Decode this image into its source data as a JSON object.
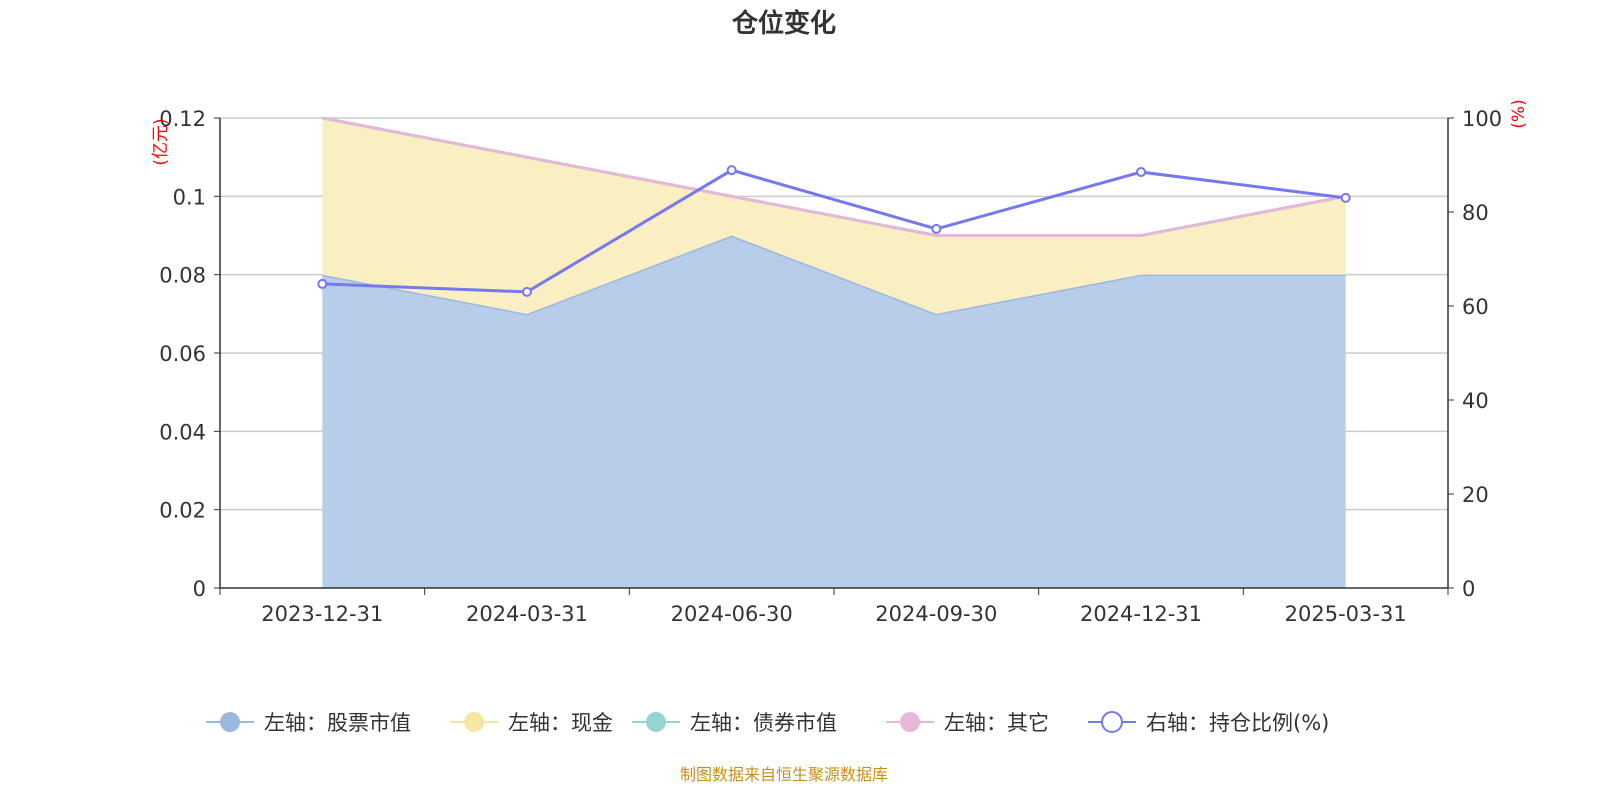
{
  "chart_data": {
    "type": "area",
    "stacked": true,
    "title": "仓位变化",
    "y_left_unit": "(亿元)",
    "y_right_unit": "(%)",
    "categories": [
      "2023-12-31",
      "2024-03-31",
      "2024-06-30",
      "2024-09-30",
      "2024-12-31",
      "2025-03-31"
    ],
    "y_left": {
      "range": [
        0,
        0.12
      ],
      "ticks": [
        "0",
        "0.02",
        "0.04",
        "0.06",
        "0.08",
        "0.1",
        "0.12"
      ],
      "tick_values": [
        0,
        0.02,
        0.04,
        0.06,
        0.08,
        0.1,
        0.12
      ]
    },
    "y_right": {
      "range": [
        0,
        100
      ],
      "ticks": [
        "0",
        "20",
        "40",
        "60",
        "80",
        "100"
      ],
      "tick_values": [
        0,
        20,
        40,
        60,
        80,
        100
      ]
    },
    "grid": true,
    "legend_position": "bottom",
    "series": [
      {
        "name": "左轴：股票市值",
        "axis": "left",
        "color": "#9bb8e0",
        "fill": "#b8cdea",
        "values": [
          0.08,
          0.07,
          0.09,
          0.07,
          0.08,
          0.08
        ]
      },
      {
        "name": "左轴：现金",
        "axis": "left",
        "color": "#f7e6a2",
        "fill": "#faefc3",
        "values": [
          0.04,
          0.04,
          0.01,
          0.02,
          0.01,
          0.02
        ]
      },
      {
        "name": "左轴：债券市值",
        "axis": "left",
        "color": "#96d3d3",
        "values": [
          0,
          0,
          0,
          0,
          0,
          0
        ]
      },
      {
        "name": "左轴：其它",
        "axis": "left",
        "color": "#e6b8d8",
        "values": [
          0,
          0,
          0,
          0,
          0,
          0
        ]
      },
      {
        "name": "右轴：持仓比例(%)",
        "axis": "right",
        "color": "#7578ef",
        "type": "line",
        "values": [
          64.7,
          63.0,
          88.9,
          76.4,
          88.5,
          83.0
        ]
      }
    ]
  },
  "source_note": "制图数据来自恒生聚源数据库",
  "colors": {
    "title": "#333333",
    "unit": "#ff0000",
    "axis": "#333333",
    "grid": "#cccccc",
    "source": "#c8901a"
  }
}
